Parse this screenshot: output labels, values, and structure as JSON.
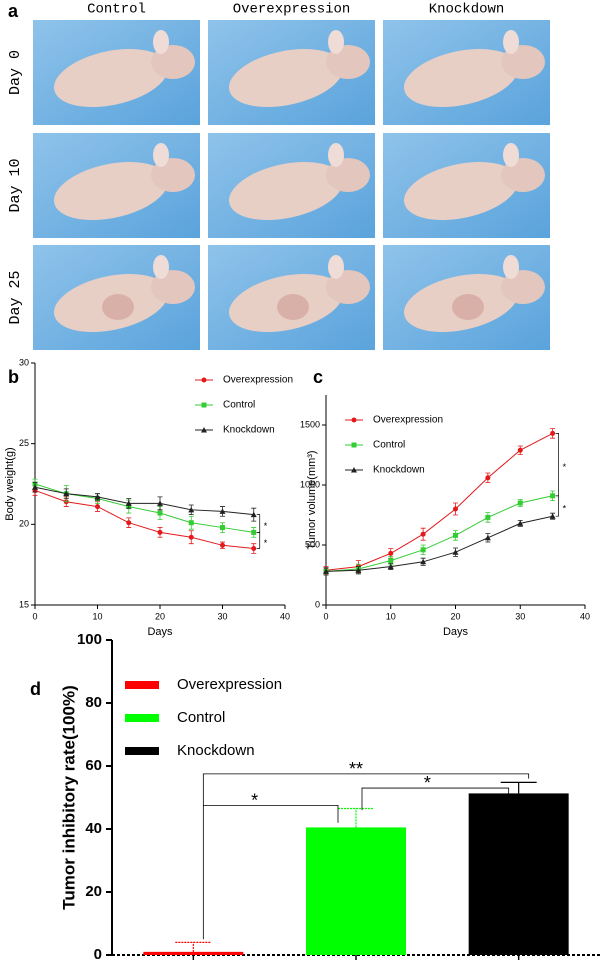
{
  "figure": {
    "panel_a": {
      "label": "a",
      "columns": [
        "Control",
        "Overexpression",
        "Knockdown"
      ],
      "rows": [
        "Day 0",
        "Day 10",
        "Day 25"
      ]
    }
  },
  "chart_data": [
    {
      "type": "line",
      "panel_label": "b",
      "x_label": "Days",
      "y_label": "Body weight(g)",
      "x": [
        0,
        5,
        10,
        15,
        20,
        25,
        30,
        35
      ],
      "xlim": [
        0,
        40
      ],
      "xticks": [
        0,
        10,
        20,
        30,
        40
      ],
      "ylim": [
        15,
        30
      ],
      "yticks": [
        15,
        20,
        25,
        30
      ],
      "legend": "upper right",
      "series": [
        {
          "name": "Overexpression",
          "color": "#e31a1c",
          "marker": "circle",
          "values": [
            22.1,
            21.4,
            21.1,
            20.1,
            19.5,
            19.2,
            18.7,
            18.5
          ],
          "errors": [
            0.3,
            0.3,
            0.3,
            0.3,
            0.3,
            0.4,
            0.2,
            0.3
          ]
        },
        {
          "name": "Control",
          "color": "#33cc33",
          "marker": "square",
          "values": [
            22.5,
            21.9,
            21.6,
            21.1,
            20.7,
            20.1,
            19.8,
            19.5
          ],
          "errors": [
            0.3,
            0.5,
            0.3,
            0.4,
            0.4,
            0.4,
            0.3,
            0.3
          ]
        },
        {
          "name": "Knockdown",
          "color": "#222222",
          "marker": "triangle",
          "values": [
            22.3,
            21.9,
            21.7,
            21.3,
            21.3,
            20.9,
            20.8,
            20.6
          ],
          "errors": [
            0.3,
            0.3,
            0.2,
            0.3,
            0.4,
            0.3,
            0.3,
            0.4
          ]
        }
      ],
      "annotations": [
        "*",
        "*"
      ]
    },
    {
      "type": "line",
      "panel_label": "c",
      "x_label": "Days",
      "y_label": "Tumor volume(mm³)",
      "x": [
        0,
        5,
        10,
        15,
        20,
        25,
        30,
        35
      ],
      "xlim": [
        0,
        40
      ],
      "xticks": [
        0,
        10,
        20,
        30,
        40
      ],
      "ylim": [
        0,
        1750
      ],
      "yticks": [
        0,
        500,
        1000,
        1500
      ],
      "legend": "upper left",
      "series": [
        {
          "name": "Overexpression",
          "color": "#e31a1c",
          "marker": "circle",
          "values": [
            290,
            320,
            430,
            590,
            800,
            1060,
            1290,
            1430
          ],
          "errors": [
            30,
            50,
            40,
            50,
            50,
            40,
            35,
            40
          ]
        },
        {
          "name": "Control",
          "color": "#33cc33",
          "marker": "square",
          "values": [
            280,
            300,
            370,
            460,
            580,
            730,
            850,
            910
          ],
          "errors": [
            30,
            40,
            35,
            40,
            40,
            40,
            30,
            40
          ]
        },
        {
          "name": "Knockdown",
          "color": "#222222",
          "marker": "triangle",
          "values": [
            280,
            290,
            320,
            360,
            440,
            560,
            680,
            740
          ],
          "errors": [
            30,
            30,
            25,
            30,
            35,
            35,
            25,
            25
          ]
        }
      ],
      "annotations": [
        "*",
        "*"
      ]
    },
    {
      "type": "bar",
      "panel_label": "d",
      "y_label": "Tumor inhibitory rate(100%)",
      "categories": [
        "Overexpression",
        "Control",
        "Knockdown"
      ],
      "values": [
        1,
        40.5,
        51.3
      ],
      "errors": [
        3,
        6,
        3.5
      ],
      "colors": [
        "#ff0000",
        "#00ff00",
        "#000000"
      ],
      "ylim": [
        0,
        100
      ],
      "yticks": [
        0,
        20,
        40,
        60,
        80,
        100
      ],
      "legend": "upper left",
      "annotations": [
        "*",
        "*",
        "**"
      ]
    }
  ]
}
